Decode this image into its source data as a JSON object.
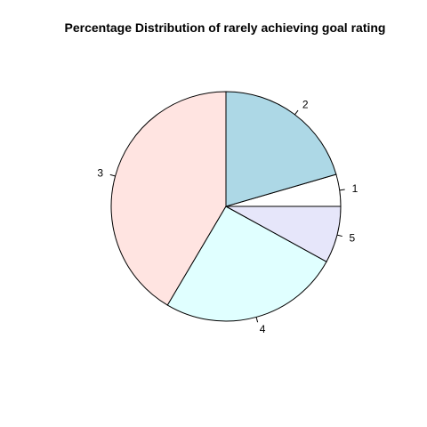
{
  "chart_data": {
    "type": "pie",
    "title": "Percentage Distribution of rarely achieving goal rating",
    "start_angle": "counterclockwise from 3 o'clock",
    "slices": [
      {
        "label": "1",
        "value": 4.5,
        "color": "#FFFFFF"
      },
      {
        "label": "2",
        "value": 20.5,
        "color": "#ADD8E6"
      },
      {
        "label": "3",
        "value": 41.5,
        "color": "#FFE4E1"
      },
      {
        "label": "4",
        "value": 25.5,
        "color": "#E0FFFF"
      },
      {
        "label": "5",
        "value": 8.0,
        "color": "#E6E6FA"
      }
    ]
  }
}
